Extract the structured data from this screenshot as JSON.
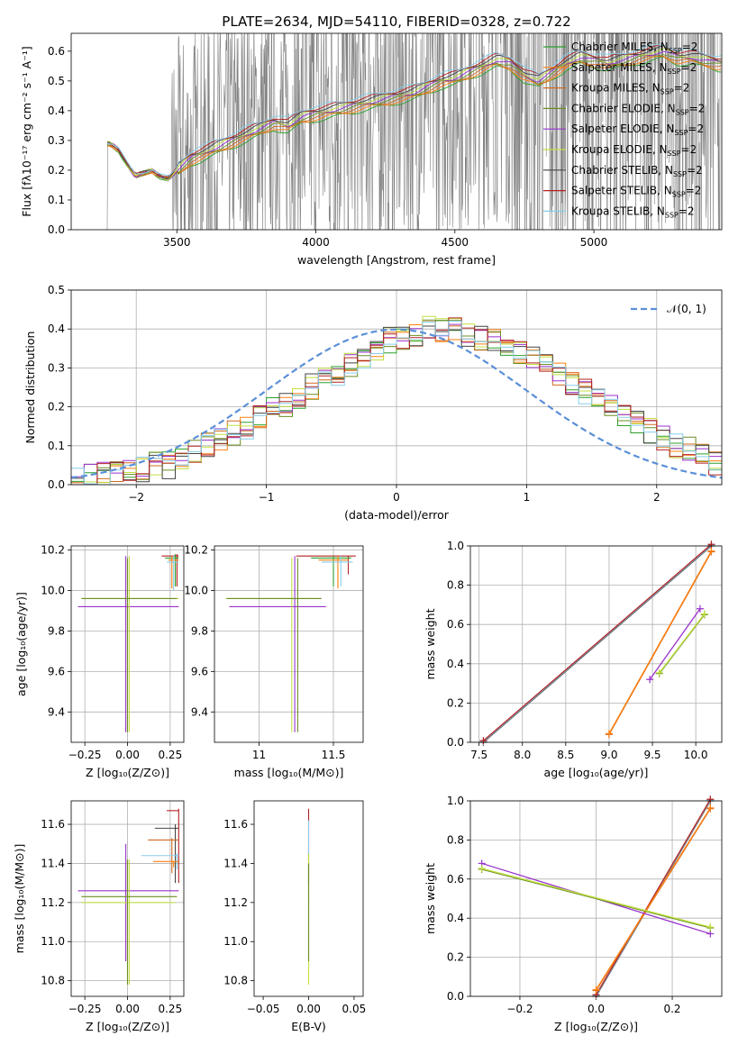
{
  "title": "PLATE=2634, MJD=54110, FIBERID=0328, z=0.722",
  "colors": {
    "Chabrier MILES": "#2ca02c",
    "Salpeter MILES": "#ff7f0e",
    "Kroupa MILES": "#d2691e",
    "Chabrier ELODIE": "#6b8e23",
    "Salpeter ELODIE": "#9932cc",
    "Kroupa ELODIE": "#c0e040",
    "Chabrier STELIB": "#444444",
    "Salpeter STELIB": "#b22222",
    "Kroupa STELIB": "#87ceeb",
    "spectrum": "#808080",
    "normal": "#5b8fd9"
  },
  "chart_data": [
    {
      "type": "line",
      "panel": "spectrum",
      "xlabel": "wavelength [Angstrom, rest frame]",
      "ylabel": "Flux [fλ10⁻¹⁷ erg cm⁻² s⁻¹ A⁻¹]",
      "xlim": [
        3120,
        5460
      ],
      "ylim": [
        0,
        0.66
      ],
      "xticks": [
        3500,
        4000,
        4500,
        5000
      ],
      "yticks": [
        0,
        0.1,
        0.2,
        0.3,
        0.4,
        0.5,
        0.6
      ],
      "legend": [
        "Chabrier MILES, N_SSP=2",
        "Salpeter MILES, N_SSP=2",
        "Kroupa MILES, N_SSP=2",
        "Chabrier ELODIE, N_SSP=2",
        "Salpeter ELODIE, N_SSP=2",
        "Kroupa ELODIE, N_SSP=2",
        "Chabrier STELIB, N_SSP=2",
        "Salpeter STELIB, N_SSP=2",
        "Kroupa STELIB, N_SSP=2"
      ],
      "legend_placement": "upper right",
      "model_curve": {
        "x": [
          3250,
          3260,
          3290,
          3320,
          3350,
          3380,
          3410,
          3440,
          3470,
          3500,
          3550,
          3600,
          3650,
          3700,
          3750,
          3800,
          3850,
          3900,
          3950,
          4000,
          4050,
          4100,
          4150,
          4200,
          4250,
          4300,
          4350,
          4400,
          4450,
          4500,
          4550,
          4600,
          4650,
          4700,
          4750,
          4800,
          4850,
          4900,
          4950,
          5000,
          5050,
          5100,
          5150,
          5200,
          5250,
          5300,
          5350,
          5400,
          5450
        ],
        "y": [
          0.29,
          0.29,
          0.27,
          0.22,
          0.18,
          0.19,
          0.2,
          0.18,
          0.17,
          0.2,
          0.24,
          0.26,
          0.28,
          0.3,
          0.32,
          0.34,
          0.36,
          0.35,
          0.38,
          0.39,
          0.4,
          0.41,
          0.42,
          0.43,
          0.44,
          0.45,
          0.46,
          0.48,
          0.5,
          0.51,
          0.53,
          0.55,
          0.57,
          0.56,
          0.52,
          0.5,
          0.53,
          0.56,
          0.58,
          0.57,
          0.56,
          0.57,
          0.58,
          0.59,
          0.6,
          0.58,
          0.58,
          0.57,
          0.56
        ]
      },
      "spectrum_range": [
        3240,
        5460
      ]
    },
    {
      "type": "step",
      "panel": "residuals",
      "xlabel": "(data-model)/error",
      "ylabel": "Normed distribution",
      "xlim": [
        -2.5,
        2.5
      ],
      "ylim": [
        0,
        0.5
      ],
      "xticks": [
        -2,
        -1,
        0,
        1,
        2
      ],
      "yticks": [
        0,
        0.1,
        0.2,
        0.3,
        0.4,
        0.5
      ],
      "grid": true,
      "legend": "𝒩(0, 1)",
      "legend_placement": "upper right",
      "bin_width": 0.1,
      "bins_start": -2.5,
      "hist_mean": [
        0.02,
        0.02,
        0.03,
        0.03,
        0.04,
        0.04,
        0.05,
        0.05,
        0.07,
        0.08,
        0.1,
        0.11,
        0.13,
        0.15,
        0.17,
        0.19,
        0.21,
        0.23,
        0.25,
        0.27,
        0.29,
        0.31,
        0.33,
        0.35,
        0.37,
        0.38,
        0.39,
        0.4,
        0.4,
        0.4,
        0.39,
        0.38,
        0.37,
        0.35,
        0.34,
        0.32,
        0.3,
        0.28,
        0.26,
        0.24,
        0.22,
        0.2,
        0.18,
        0.16,
        0.14,
        0.12,
        0.1,
        0.09,
        0.07,
        0.06
      ]
    },
    {
      "type": "errorbar",
      "panel": "Z vs age",
      "xlabel": "Z [log₁₀(Z/Z⊙)]",
      "ylabel": "age  [log₁₀(age/yr)]",
      "xlim": [
        -0.33,
        0.33
      ],
      "ylim": [
        9.25,
        10.22
      ],
      "xticks": [
        -0.25,
        0.0,
        0.25
      ],
      "yticks": [
        9.4,
        9.6,
        9.8,
        10.0,
        10.2
      ],
      "grid": true
    },
    {
      "type": "errorbar",
      "panel": "mass vs age",
      "xlabel": "mass [log₁₀(M/M⊙)]",
      "xlim": [
        10.7,
        11.7
      ],
      "ylim": [
        9.25,
        10.22
      ],
      "xticks": [
        11.0,
        11.5
      ],
      "yticks": [
        9.4,
        9.6,
        9.8,
        10.0,
        10.2
      ],
      "grid": true
    },
    {
      "type": "line",
      "panel": "age vs mass weight",
      "xlabel": "age  [log₁₀(age/yr)]",
      "ylabel": "mass weight",
      "xlim": [
        7.4,
        10.3
      ],
      "ylim": [
        0,
        1
      ],
      "xticks": [
        7.5,
        8.0,
        8.5,
        9.0,
        9.5,
        10.0
      ],
      "yticks": [
        0,
        0.2,
        0.4,
        0.6,
        0.8,
        1.0
      ],
      "grid": true,
      "series": [
        {
          "name": "STELIB",
          "x": [
            7.55,
            10.18
          ],
          "y": [
            0.0,
            1.0
          ]
        },
        {
          "name": "MILES",
          "x": [
            9.0,
            10.18
          ],
          "y": [
            0.04,
            0.97
          ]
        },
        {
          "name": "ELODIE Salpeter",
          "x": [
            9.47,
            10.05
          ],
          "y": [
            0.32,
            0.68
          ]
        },
        {
          "name": "ELODIE",
          "x": [
            9.58,
            10.1
          ],
          "y": [
            0.35,
            0.65
          ]
        }
      ]
    },
    {
      "type": "errorbar",
      "panel": "Z vs mass",
      "xlabel": "Z [log₁₀(Z/Z⊙)]",
      "ylabel": "mass [log₁₀(M/M⊙)]",
      "xlim": [
        -0.33,
        0.33
      ],
      "ylim": [
        10.72,
        11.72
      ],
      "xticks": [
        -0.25,
        0.0,
        0.25
      ],
      "yticks": [
        10.8,
        11.0,
        11.2,
        11.4,
        11.6
      ],
      "grid": true
    },
    {
      "type": "errorbar",
      "panel": "E(B-V) vs mass",
      "xlabel": "E(B-V)",
      "xlim": [
        -0.06,
        0.06
      ],
      "ylim": [
        10.72,
        11.72
      ],
      "xticks": [
        -0.05,
        0.0,
        0.05
      ],
      "yticks": [
        10.8,
        11.0,
        11.2,
        11.4,
        11.6
      ],
      "grid": false
    },
    {
      "type": "line",
      "panel": "Z vs mass weight",
      "xlabel": "Z [log₁₀(Z/Z⊙)]",
      "ylabel": "mass weight",
      "xlim": [
        -0.33,
        0.33
      ],
      "ylim": [
        0,
        1
      ],
      "xticks": [
        -0.2,
        0.0,
        0.2
      ],
      "yticks": [
        0,
        0.2,
        0.4,
        0.6,
        0.8,
        1.0
      ],
      "grid": true,
      "series": [
        {
          "name": "STELIB",
          "x": [
            0.0,
            0.3
          ],
          "y": [
            0.0,
            1.0
          ]
        },
        {
          "name": "MILES",
          "x": [
            0.0,
            0.3
          ],
          "y": [
            0.03,
            0.96
          ]
        },
        {
          "name": "ELODIE Salpeter",
          "x": [
            -0.3,
            0.3
          ],
          "y": [
            0.68,
            0.32
          ]
        },
        {
          "name": "ELODIE",
          "x": [
            -0.3,
            0.3
          ],
          "y": [
            0.65,
            0.35
          ]
        }
      ]
    }
  ]
}
